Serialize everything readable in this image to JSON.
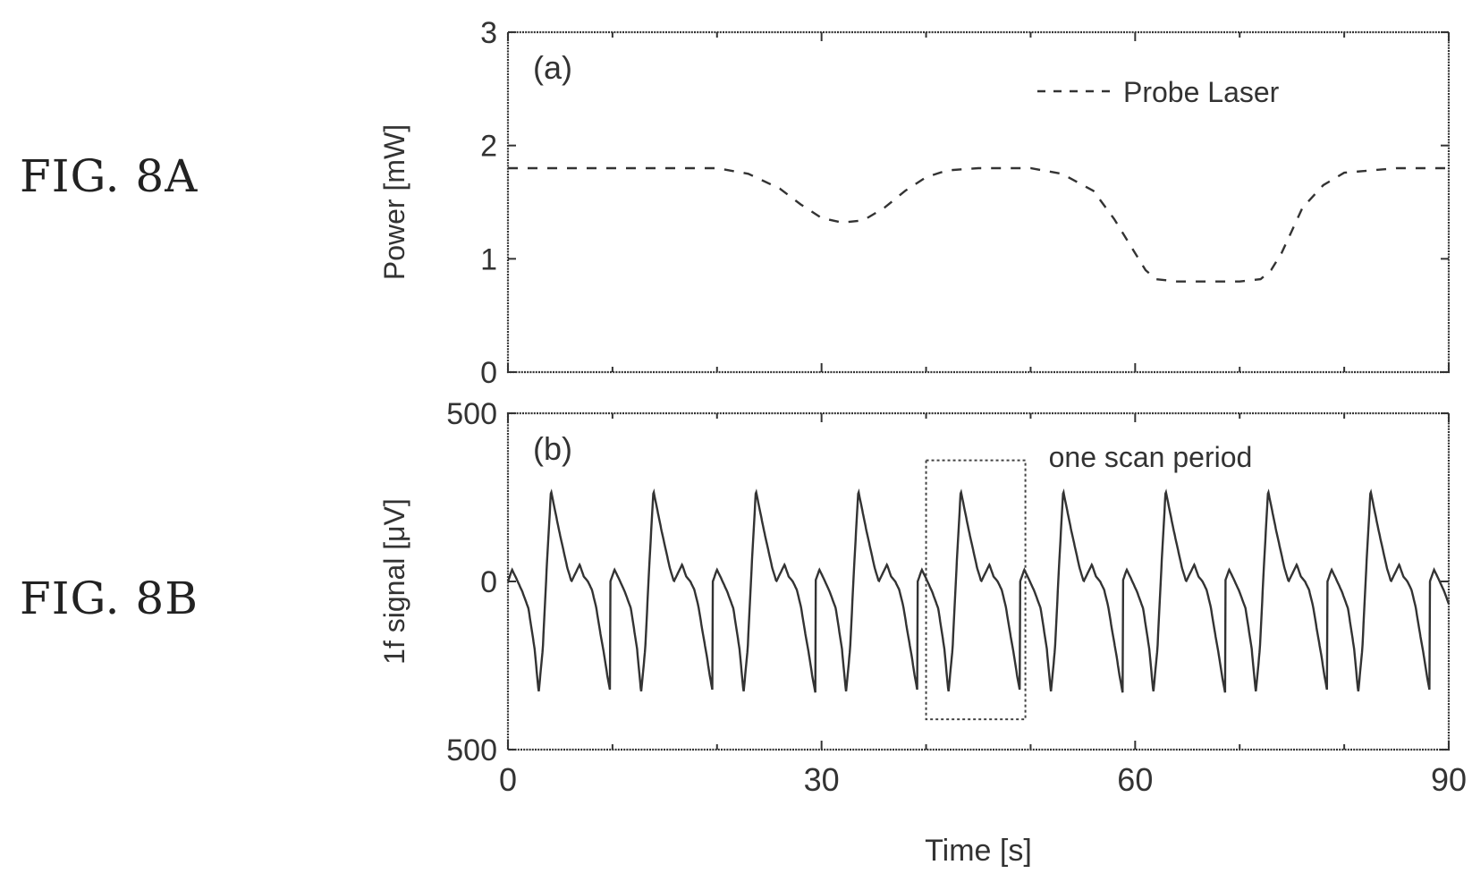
{
  "figures": {
    "a_label": "FIG. 8A",
    "b_label": "FIG. 8B"
  },
  "chart_data": [
    {
      "type": "line",
      "panel_label": "(a)",
      "xlabel": "",
      "ylabel": "Power [mW]",
      "xlim": [
        0,
        90
      ],
      "ylim": [
        0,
        3
      ],
      "x_ticks": [
        "0",
        "30",
        "60",
        "90"
      ],
      "y_ticks": [
        "0",
        "1",
        "2",
        "3"
      ],
      "legend": {
        "position": "top-right",
        "entries": [
          "Probe Laser"
        ]
      },
      "line_style": "dashed",
      "series": [
        {
          "name": "Probe Laser",
          "x": [
            0,
            5,
            10,
            15,
            20,
            23,
            26,
            28,
            30,
            32,
            34,
            36,
            38,
            40,
            42,
            45,
            50,
            53,
            56,
            58,
            60,
            61,
            62,
            64,
            67,
            70,
            72,
            73,
            74,
            75,
            76,
            78,
            80,
            85,
            90
          ],
          "y": [
            1.8,
            1.8,
            1.8,
            1.8,
            1.8,
            1.75,
            1.62,
            1.48,
            1.36,
            1.32,
            1.34,
            1.45,
            1.6,
            1.72,
            1.78,
            1.8,
            1.8,
            1.75,
            1.6,
            1.35,
            1.05,
            0.9,
            0.82,
            0.8,
            0.8,
            0.8,
            0.82,
            0.9,
            1.05,
            1.25,
            1.45,
            1.65,
            1.76,
            1.8,
            1.8
          ]
        }
      ]
    },
    {
      "type": "line",
      "panel_label": "(b)",
      "xlabel": "Time [s]",
      "ylabel": "1f signal [μV]",
      "xlim": [
        0,
        90
      ],
      "ylim": [
        -500,
        500
      ],
      "x_ticks": [
        "0",
        "30",
        "60",
        "90"
      ],
      "y_ticks": [
        "500",
        "0",
        "500"
      ],
      "annotation": {
        "text": "one scan period",
        "box_x": [
          40,
          49.5
        ],
        "box_y": [
          -410,
          360
        ]
      },
      "period": 9.8,
      "waveform": {
        "phase": [
          0,
          0.04,
          0.08,
          0.14,
          0.2,
          0.26,
          0.3,
          0.34,
          0.38,
          0.42,
          0.5,
          0.58,
          0.62,
          0.66,
          0.7,
          0.74,
          0.78,
          0.82,
          0.86,
          0.9,
          0.94,
          0.97,
          1.0
        ],
        "values": [
          0,
          35,
          10,
          -30,
          -80,
          -200,
          -330,
          -200,
          50,
          270,
          150,
          40,
          0,
          25,
          50,
          15,
          0,
          -25,
          -75,
          -150,
          -220,
          -280,
          -330
        ]
      },
      "series": [
        {
          "name": "",
          "x_start": 0,
          "x_end": 90
        }
      ]
    }
  ]
}
